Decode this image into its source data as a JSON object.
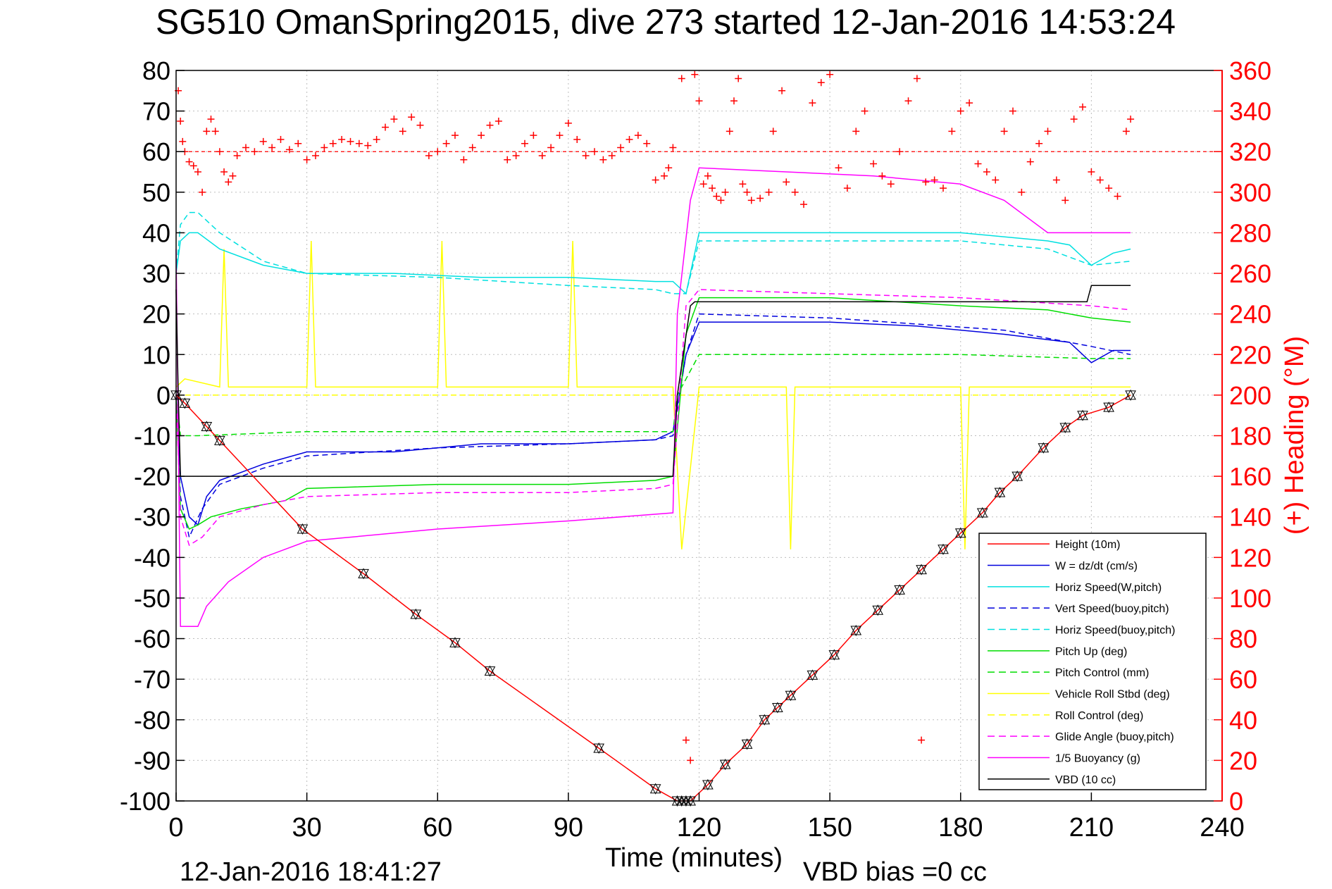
{
  "chart_data": {
    "type": "line",
    "title": "SG510 OmanSpring2015, dive 273 started 12-Jan-2016 14:53:24",
    "xlabel": "Time (minutes)",
    "ylabel": "",
    "y2label": "(+) Heading (°M)",
    "footer_left": "12-Jan-2016 18:41:27",
    "footer_right": "VBD bias =0 cc",
    "xlim": [
      0,
      240
    ],
    "ylim": [
      -100,
      80
    ],
    "y2lim": [
      0,
      360
    ],
    "xticks": [
      0,
      30,
      60,
      90,
      120,
      150,
      180,
      210,
      240
    ],
    "yticks": [
      80,
      70,
      60,
      50,
      40,
      30,
      20,
      10,
      0,
      -10,
      -20,
      -30,
      -40,
      -50,
      -60,
      -70,
      -80,
      -90,
      -100
    ],
    "y2ticks": [
      360,
      340,
      320,
      300,
      280,
      260,
      240,
      220,
      200,
      180,
      160,
      140,
      120,
      100,
      80,
      60,
      40,
      20,
      0
    ],
    "grid": true,
    "legend_position": "bottom-right",
    "heading_mean_line": 320,
    "series": [
      {
        "name": "Height (10m)",
        "color": "#ff0000",
        "dash": "solid",
        "x": [
          0,
          2,
          29,
          43,
          55,
          64,
          72,
          97,
          110,
          115,
          118,
          122,
          126,
          131,
          135,
          141,
          146,
          151,
          156,
          161,
          166,
          171,
          176,
          180,
          185,
          189,
          193,
          199,
          204,
          208,
          214,
          219
        ],
        "y": [
          0,
          -2,
          -33,
          -44,
          -54,
          -61,
          -68,
          -87,
          -97,
          -100,
          -100,
          -96,
          -91,
          -86,
          -80,
          -74,
          -69,
          -64,
          -58,
          -53,
          -48,
          -43,
          -38,
          -34,
          -29,
          -24,
          -20,
          -13,
          -8,
          -5,
          -3,
          0
        ]
      },
      {
        "name": "W = dz/dt (cm/s)",
        "color": "#0000dd",
        "dash": "solid",
        "x": [
          0,
          1,
          3,
          5,
          7,
          10,
          20,
          30,
          50,
          70,
          90,
          110,
          114,
          117,
          120,
          130,
          150,
          170,
          190,
          205,
          210,
          215,
          219
        ],
        "y": [
          0,
          -20,
          -30,
          -32,
          -25,
          -21,
          -17,
          -14,
          -14,
          -12,
          -12,
          -11,
          -9,
          10,
          18,
          18,
          18,
          17,
          15,
          13,
          8,
          11,
          11
        ]
      },
      {
        "name": "Horiz Speed(W,pitch)",
        "color": "#00e0e0",
        "dash": "solid",
        "x": [
          0,
          1,
          3,
          5,
          10,
          20,
          30,
          50,
          70,
          90,
          110,
          114,
          117,
          120,
          150,
          180,
          200,
          205,
          210,
          215,
          219
        ],
        "y": [
          30,
          38,
          40,
          40,
          36,
          32,
          30,
          30,
          29,
          29,
          28,
          28,
          25,
          40,
          40,
          40,
          38,
          37,
          32,
          35,
          36
        ]
      },
      {
        "name": "Vert Speed(buoy,pitch)",
        "color": "#0000dd",
        "dash": "dashed",
        "x": [
          0,
          1,
          3,
          6,
          10,
          20,
          30,
          60,
          90,
          110,
          114,
          117,
          120,
          150,
          190,
          210,
          219
        ],
        "y": [
          0,
          -25,
          -35,
          -28,
          -22,
          -18,
          -15,
          -13,
          -12,
          -11,
          -10,
          10,
          20,
          19,
          16,
          12,
          10
        ]
      },
      {
        "name": "Horiz Speed(buoy,pitch)",
        "color": "#00e0e0",
        "dash": "dashed",
        "x": [
          0,
          1,
          3,
          5,
          10,
          20,
          30,
          60,
          90,
          110,
          114,
          117,
          120,
          150,
          180,
          200,
          210,
          219
        ],
        "y": [
          30,
          42,
          45,
          45,
          40,
          33,
          30,
          29,
          27,
          26,
          25,
          25,
          38,
          38,
          38,
          36,
          32,
          33
        ]
      },
      {
        "name": "Pitch Up (deg)",
        "color": "#00dd00",
        "dash": "solid",
        "x": [
          0,
          1,
          3,
          5,
          8,
          15,
          25,
          30,
          60,
          90,
          110,
          114,
          117,
          120,
          150,
          180,
          200,
          210,
          219
        ],
        "y": [
          0,
          -28,
          -33,
          -32,
          -30,
          -28,
          -26,
          -23,
          -22,
          -22,
          -21,
          -20,
          15,
          24,
          24,
          22,
          21,
          19,
          18
        ]
      },
      {
        "name": "Pitch Control (mm)",
        "color": "#00dd00",
        "dash": "dashed",
        "x": [
          0,
          1,
          5,
          30,
          60,
          90,
          114,
          115,
          120,
          150,
          180,
          210,
          219
        ],
        "y": [
          0,
          -10,
          -10,
          -9,
          -9,
          -9,
          -9,
          0,
          10,
          10,
          10,
          9,
          9
        ]
      },
      {
        "name": "Vehicle Roll Stbd (deg)",
        "color": "#ffff00",
        "dash": "solid",
        "x": [
          0,
          2,
          10,
          11,
          12,
          30,
          31,
          32,
          60,
          61,
          62,
          90,
          91,
          92,
          114,
          116,
          120,
          140,
          141,
          142,
          180,
          181,
          182,
          219
        ],
        "y": [
          2,
          4,
          2,
          36,
          2,
          2,
          38,
          2,
          2,
          38,
          2,
          2,
          38,
          2,
          2,
          -38,
          2,
          2,
          -38,
          2,
          2,
          -38,
          2,
          2
        ]
      },
      {
        "name": "Roll Control (deg)",
        "color": "#ffff00",
        "dash": "dashed",
        "x": [
          0,
          1,
          5,
          114,
          115,
          120,
          219
        ],
        "y": [
          0,
          0,
          0,
          0,
          0,
          0,
          0
        ]
      },
      {
        "name": "Glide Angle (buoy,pitch)",
        "color": "#ff00ff",
        "dash": "dashed",
        "x": [
          0,
          1,
          3,
          6,
          10,
          20,
          30,
          60,
          90,
          110,
          114,
          117,
          120,
          150,
          180,
          210,
          219
        ],
        "y": [
          0,
          -30,
          -37,
          -35,
          -30,
          -27,
          -25,
          -24,
          -24,
          -23,
          -22,
          22,
          26,
          25,
          24,
          22,
          21
        ]
      },
      {
        "name": "1/5 Buoyancy (g)",
        "color": "#ff00ff",
        "dash": "solid",
        "x": [
          0,
          1,
          5,
          7,
          12,
          20,
          30,
          60,
          90,
          114,
          115,
          118,
          120,
          140,
          160,
          180,
          190,
          200,
          210,
          219
        ],
        "y": [
          36,
          -57,
          -57,
          -52,
          -46,
          -40,
          -36,
          -33,
          -31,
          -29,
          20,
          48,
          56,
          55,
          54,
          52,
          48,
          40,
          40,
          40
        ]
      },
      {
        "name": "VBD (10 cc)",
        "color": "#000000",
        "dash": "solid",
        "x": [
          0,
          0.5,
          1,
          2,
          114,
          115,
          118,
          119,
          209,
          210,
          219
        ],
        "y": [
          26,
          0,
          -20,
          -20,
          -20,
          0,
          22,
          23,
          23,
          27,
          27
        ]
      }
    ],
    "heading_points": [
      {
        "x": 0.5,
        "y": 350
      },
      {
        "x": 1,
        "y": 335
      },
      {
        "x": 1.5,
        "y": 325
      },
      {
        "x": 2,
        "y": 320
      },
      {
        "x": 3,
        "y": 315
      },
      {
        "x": 4,
        "y": 313
      },
      {
        "x": 5,
        "y": 310
      },
      {
        "x": 6,
        "y": 300
      },
      {
        "x": 7,
        "y": 330
      },
      {
        "x": 8,
        "y": 336
      },
      {
        "x": 9,
        "y": 330
      },
      {
        "x": 10,
        "y": 320
      },
      {
        "x": 11,
        "y": 310
      },
      {
        "x": 12,
        "y": 305
      },
      {
        "x": 13,
        "y": 308
      },
      {
        "x": 14,
        "y": 318
      },
      {
        "x": 16,
        "y": 322
      },
      {
        "x": 18,
        "y": 320
      },
      {
        "x": 20,
        "y": 325
      },
      {
        "x": 22,
        "y": 322
      },
      {
        "x": 24,
        "y": 326
      },
      {
        "x": 26,
        "y": 321
      },
      {
        "x": 28,
        "y": 324
      },
      {
        "x": 30,
        "y": 316
      },
      {
        "x": 32,
        "y": 318
      },
      {
        "x": 34,
        "y": 322
      },
      {
        "x": 36,
        "y": 324
      },
      {
        "x": 38,
        "y": 326
      },
      {
        "x": 40,
        "y": 325
      },
      {
        "x": 42,
        "y": 324
      },
      {
        "x": 44,
        "y": 323
      },
      {
        "x": 46,
        "y": 326
      },
      {
        "x": 48,
        "y": 332
      },
      {
        "x": 50,
        "y": 336
      },
      {
        "x": 52,
        "y": 330
      },
      {
        "x": 54,
        "y": 337
      },
      {
        "x": 56,
        "y": 333
      },
      {
        "x": 58,
        "y": 318
      },
      {
        "x": 60,
        "y": 320
      },
      {
        "x": 62,
        "y": 324
      },
      {
        "x": 64,
        "y": 328
      },
      {
        "x": 66,
        "y": 316
      },
      {
        "x": 68,
        "y": 322
      },
      {
        "x": 70,
        "y": 328
      },
      {
        "x": 72,
        "y": 333
      },
      {
        "x": 74,
        "y": 335
      },
      {
        "x": 76,
        "y": 316
      },
      {
        "x": 78,
        "y": 318
      },
      {
        "x": 80,
        "y": 324
      },
      {
        "x": 82,
        "y": 328
      },
      {
        "x": 84,
        "y": 318
      },
      {
        "x": 86,
        "y": 322
      },
      {
        "x": 88,
        "y": 328
      },
      {
        "x": 90,
        "y": 334
      },
      {
        "x": 92,
        "y": 326
      },
      {
        "x": 94,
        "y": 318
      },
      {
        "x": 96,
        "y": 320
      },
      {
        "x": 98,
        "y": 316
      },
      {
        "x": 100,
        "y": 318
      },
      {
        "x": 102,
        "y": 322
      },
      {
        "x": 104,
        "y": 326
      },
      {
        "x": 106,
        "y": 328
      },
      {
        "x": 108,
        "y": 324
      },
      {
        "x": 110,
        "y": 306
      },
      {
        "x": 112,
        "y": 308
      },
      {
        "x": 113,
        "y": 312
      },
      {
        "x": 114,
        "y": 322
      },
      {
        "x": 116,
        "y": 356
      },
      {
        "x": 117,
        "y": 30
      },
      {
        "x": 118,
        "y": 20
      },
      {
        "x": 119,
        "y": 358
      },
      {
        "x": 120,
        "y": 345
      },
      {
        "x": 121,
        "y": 304
      },
      {
        "x": 122,
        "y": 308
      },
      {
        "x": 123,
        "y": 302
      },
      {
        "x": 124,
        "y": 298
      },
      {
        "x": 125,
        "y": 296
      },
      {
        "x": 126,
        "y": 300
      },
      {
        "x": 127,
        "y": 330
      },
      {
        "x": 128,
        "y": 345
      },
      {
        "x": 129,
        "y": 356
      },
      {
        "x": 130,
        "y": 304
      },
      {
        "x": 131,
        "y": 300
      },
      {
        "x": 132,
        "y": 296
      },
      {
        "x": 134,
        "y": 297
      },
      {
        "x": 136,
        "y": 300
      },
      {
        "x": 137,
        "y": 330
      },
      {
        "x": 139,
        "y": 350
      },
      {
        "x": 140,
        "y": 305
      },
      {
        "x": 142,
        "y": 300
      },
      {
        "x": 144,
        "y": 294
      },
      {
        "x": 146,
        "y": 344
      },
      {
        "x": 148,
        "y": 354
      },
      {
        "x": 150,
        "y": 358
      },
      {
        "x": 152,
        "y": 312
      },
      {
        "x": 154,
        "y": 302
      },
      {
        "x": 156,
        "y": 330
      },
      {
        "x": 158,
        "y": 340
      },
      {
        "x": 160,
        "y": 314
      },
      {
        "x": 162,
        "y": 308
      },
      {
        "x": 164,
        "y": 304
      },
      {
        "x": 166,
        "y": 320
      },
      {
        "x": 168,
        "y": 345
      },
      {
        "x": 170,
        "y": 356
      },
      {
        "x": 171,
        "y": 30
      },
      {
        "x": 172,
        "y": 305
      },
      {
        "x": 174,
        "y": 306
      },
      {
        "x": 176,
        "y": 302
      },
      {
        "x": 178,
        "y": 330
      },
      {
        "x": 180,
        "y": 340
      },
      {
        "x": 182,
        "y": 344
      },
      {
        "x": 184,
        "y": 314
      },
      {
        "x": 186,
        "y": 310
      },
      {
        "x": 188,
        "y": 306
      },
      {
        "x": 190,
        "y": 330
      },
      {
        "x": 192,
        "y": 340
      },
      {
        "x": 194,
        "y": 300
      },
      {
        "x": 196,
        "y": 315
      },
      {
        "x": 198,
        "y": 324
      },
      {
        "x": 200,
        "y": 330
      },
      {
        "x": 202,
        "y": 306
      },
      {
        "x": 204,
        "y": 296
      },
      {
        "x": 206,
        "y": 336
      },
      {
        "x": 208,
        "y": 342
      },
      {
        "x": 210,
        "y": 310
      },
      {
        "x": 212,
        "y": 306
      },
      {
        "x": 214,
        "y": 302
      },
      {
        "x": 216,
        "y": 298
      },
      {
        "x": 218,
        "y": 330
      },
      {
        "x": 219,
        "y": 336
      }
    ],
    "marker_times": [
      0,
      2,
      7,
      10,
      29,
      43,
      55,
      64,
      72,
      97,
      110,
      115,
      116,
      117,
      118,
      122,
      126,
      131,
      135,
      138,
      141,
      146,
      151,
      156,
      161,
      166,
      171,
      176,
      180,
      185,
      189,
      193,
      199,
      204,
      208,
      214,
      219
    ]
  }
}
